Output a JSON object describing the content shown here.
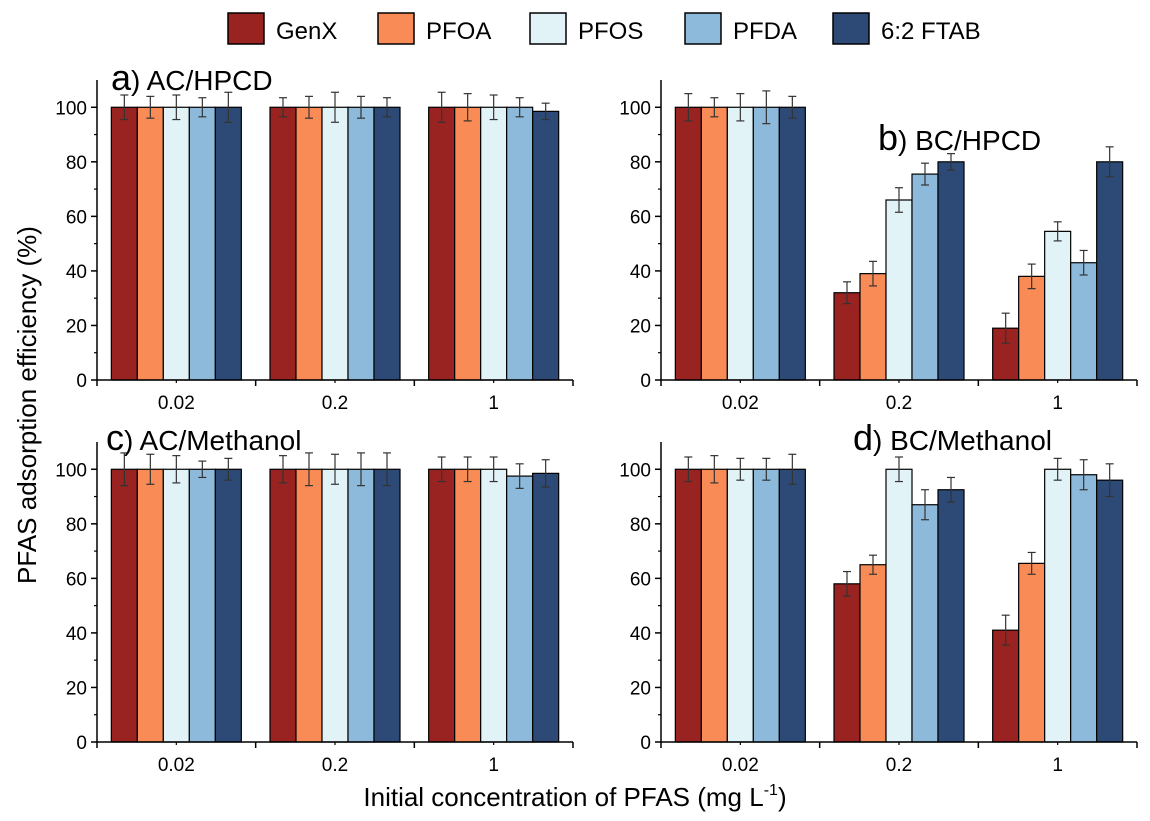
{
  "legend": [
    {
      "label": "GenX",
      "color": "#982321"
    },
    {
      "label": "PFOA",
      "color": "#F98B56"
    },
    {
      "label": "PFOS",
      "color": "#E2F3F8"
    },
    {
      "label": "PFDA",
      "color": "#8DBADB"
    },
    {
      "label": "6:2 FTAB",
      "color": "#2D4A76"
    }
  ],
  "y_axis_label": "PFAS adsorption efficiency (%)",
  "x_axis_label": {
    "main": "Initial concentration of PFAS (mg L",
    "sup": "-1",
    "close": ")"
  },
  "chart_data": [
    {
      "type": "bar",
      "panel_letter": "a",
      "title": ") AC/HPCD",
      "categories": [
        "0.02",
        "0.2",
        "1"
      ],
      "ylim": [
        0,
        110
      ],
      "yticks": [
        0,
        20,
        40,
        60,
        80,
        100
      ],
      "series": [
        {
          "name": "GenX",
          "values": [
            100,
            100,
            100
          ],
          "errors": [
            4.5,
            3.5,
            5.5
          ]
        },
        {
          "name": "PFOA",
          "values": [
            100,
            100,
            100
          ],
          "errors": [
            4,
            4,
            5
          ]
        },
        {
          "name": "PFOS",
          "values": [
            100,
            100,
            100
          ],
          "errors": [
            4.5,
            5.5,
            4.5
          ]
        },
        {
          "name": "PFDA",
          "values": [
            100,
            100,
            100
          ],
          "errors": [
            3.5,
            4,
            3.5
          ]
        },
        {
          "name": "6:2 FTAB",
          "values": [
            100,
            100,
            98.5
          ],
          "errors": [
            5.5,
            3.5,
            3
          ]
        }
      ]
    },
    {
      "type": "bar",
      "panel_letter": "b",
      "title": ") BC/HPCD",
      "categories": [
        "0.02",
        "0.2",
        "1"
      ],
      "ylim": [
        0,
        110
      ],
      "yticks": [
        0,
        20,
        40,
        60,
        80,
        100
      ],
      "series": [
        {
          "name": "GenX",
          "values": [
            100,
            32,
            19
          ],
          "errors": [
            5,
            4,
            5.5
          ]
        },
        {
          "name": "PFOA",
          "values": [
            100,
            39,
            38
          ],
          "errors": [
            3.5,
            4.5,
            4.5
          ]
        },
        {
          "name": "PFOS",
          "values": [
            100,
            66,
            54.5
          ],
          "errors": [
            5,
            4.5,
            3.5
          ]
        },
        {
          "name": "PFDA",
          "values": [
            100,
            75.5,
            43
          ],
          "errors": [
            6,
            4,
            4.5
          ]
        },
        {
          "name": "6:2 FTAB",
          "values": [
            100,
            80,
            80
          ],
          "errors": [
            4,
            3,
            5.5
          ]
        }
      ]
    },
    {
      "type": "bar",
      "panel_letter": "c",
      "title": ") AC/Methanol",
      "categories": [
        "0.02",
        "0.2",
        "1"
      ],
      "ylim": [
        0,
        110
      ],
      "yticks": [
        0,
        20,
        40,
        60,
        80,
        100
      ],
      "series": [
        {
          "name": "GenX",
          "values": [
            100,
            100,
            100
          ],
          "errors": [
            6,
            5,
            4.5
          ]
        },
        {
          "name": "PFOA",
          "values": [
            100,
            100,
            100
          ],
          "errors": [
            5.5,
            6,
            4.5
          ]
        },
        {
          "name": "PFOS",
          "values": [
            100,
            100,
            100
          ],
          "errors": [
            5,
            5.5,
            4.5
          ]
        },
        {
          "name": "PFDA",
          "values": [
            100,
            100,
            97.5
          ],
          "errors": [
            3,
            6,
            4.5
          ]
        },
        {
          "name": "6:2 FTAB",
          "values": [
            100,
            100,
            98.5
          ],
          "errors": [
            4,
            6,
            5
          ]
        }
      ]
    },
    {
      "type": "bar",
      "panel_letter": "d",
      "title": ") BC/Methanol",
      "categories": [
        "0.02",
        "0.2",
        "1"
      ],
      "ylim": [
        0,
        110
      ],
      "yticks": [
        0,
        20,
        40,
        60,
        80,
        100
      ],
      "series": [
        {
          "name": "GenX",
          "values": [
            100,
            58,
            41
          ],
          "errors": [
            4.5,
            4.5,
            5.5
          ]
        },
        {
          "name": "PFOA",
          "values": [
            100,
            65,
            65.5
          ],
          "errors": [
            5,
            3.5,
            4
          ]
        },
        {
          "name": "PFOS",
          "values": [
            100,
            100,
            100
          ],
          "errors": [
            4,
            4.5,
            4
          ]
        },
        {
          "name": "PFDA",
          "values": [
            100,
            87,
            98
          ],
          "errors": [
            4,
            5.5,
            5.5
          ]
        },
        {
          "name": "6:2 FTAB",
          "values": [
            100,
            92.5,
            96
          ],
          "errors": [
            5.5,
            4.5,
            6
          ]
        }
      ]
    }
  ]
}
